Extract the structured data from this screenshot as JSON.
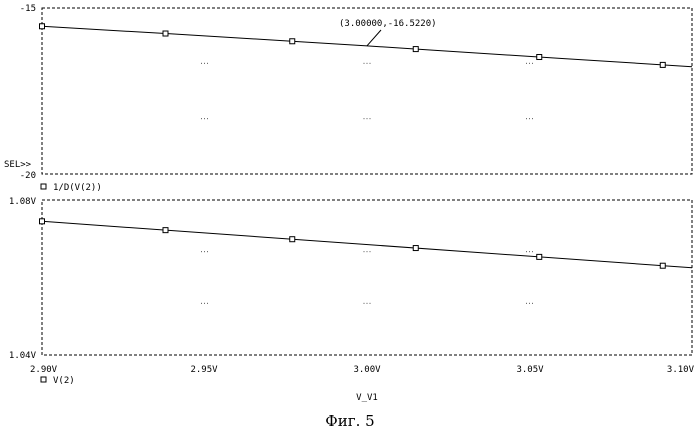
{
  "figure_caption": "Фиг. 5",
  "colors": {
    "background": "#ffffff",
    "ink": "#000000"
  },
  "chart_data": [
    {
      "type": "line",
      "grid": "dotted",
      "selected_label": "SEL>>",
      "xlim": [
        2.9,
        3.1
      ],
      "ylim": [
        -20,
        -15
      ],
      "y_tick_labels": [
        "-15",
        "-20"
      ],
      "series": [
        {
          "name": "1/D(V(2))",
          "marker": "square",
          "x": [
            2.9,
            2.94,
            2.98,
            3.0,
            3.02,
            3.06,
            3.1
          ],
          "y": [
            -15.55,
            -15.78,
            -16.02,
            -16.14,
            -16.27,
            -16.52,
            -16.77
          ]
        }
      ],
      "markers_x": [
        2.9,
        2.938,
        2.977,
        3.015,
        3.053,
        3.091
      ],
      "cursor_annotation": {
        "text": "(3.00000,-16.5220)",
        "x": 3.0,
        "y": -16.14
      }
    },
    {
      "type": "line",
      "grid": "dotted",
      "xlabel": "V_V1",
      "xlim": [
        2.9,
        3.1
      ],
      "ylim": [
        1.04,
        1.08
      ],
      "x_tick_labels": [
        "2.90V",
        "2.95V",
        "3.00V",
        "3.05V",
        "3.10V"
      ],
      "y_tick_labels": [
        "1.08V",
        "1.04V"
      ],
      "series": [
        {
          "name": "V(2)",
          "marker": "square",
          "x": [
            2.9,
            3.1
          ],
          "y": [
            1.0745,
            1.0625
          ]
        }
      ],
      "markers_x": [
        2.9,
        2.938,
        2.977,
        3.015,
        3.053,
        3.091
      ]
    }
  ]
}
